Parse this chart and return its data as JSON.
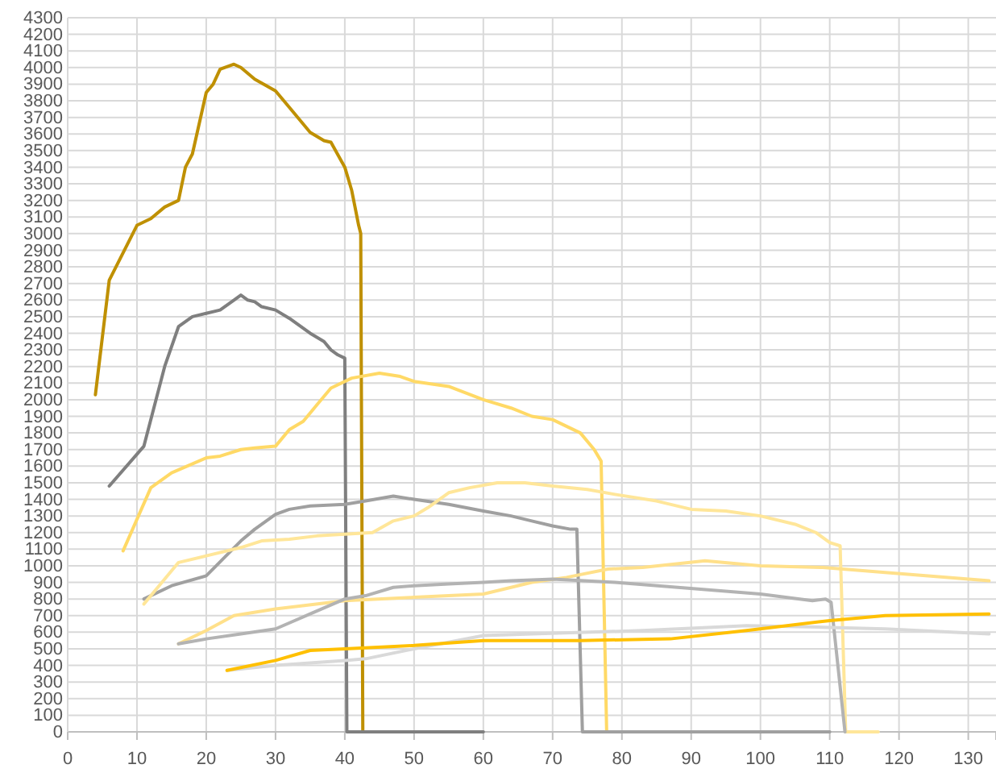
{
  "chart_data": {
    "type": "line",
    "xlim": [
      0,
      134
    ],
    "ylim": [
      0,
      4300
    ],
    "xticks": [
      0,
      10,
      20,
      30,
      40,
      50,
      60,
      70,
      80,
      90,
      100,
      110,
      120,
      130
    ],
    "yticks": [
      0,
      100,
      200,
      300,
      400,
      500,
      600,
      700,
      800,
      900,
      1000,
      1100,
      1200,
      1300,
      1400,
      1500,
      1600,
      1700,
      1800,
      1900,
      2000,
      2100,
      2200,
      2300,
      2400,
      2500,
      2600,
      2700,
      2800,
      2900,
      3000,
      3100,
      3200,
      3300,
      3400,
      3500,
      3600,
      3700,
      3800,
      3900,
      4000,
      4100,
      4200,
      4300
    ],
    "grid": true,
    "marker": "none",
    "line_style": "solid",
    "series": [
      {
        "color": "#bf9000",
        "x": [
          4,
          6,
          10,
          12,
          14,
          16,
          17,
          18,
          20,
          21,
          22,
          24,
          25,
          27,
          30,
          32,
          35,
          37,
          38,
          40,
          41,
          42,
          42.3,
          42.6,
          45
        ],
        "values": [
          2030,
          2720,
          3050,
          3090,
          3160,
          3200,
          3400,
          3480,
          3850,
          3900,
          3990,
          4020,
          4000,
          3930,
          3860,
          3760,
          3610,
          3560,
          3550,
          3400,
          3260,
          3050,
          3000,
          0,
          0
        ]
      },
      {
        "color": "#7f7f7f",
        "x": [
          6,
          11,
          14,
          16,
          18,
          20,
          22,
          24,
          25,
          26,
          27,
          28,
          30,
          32,
          35,
          37,
          38,
          39,
          40,
          40.3,
          60
        ],
        "values": [
          1480,
          1720,
          2200,
          2440,
          2500,
          2520,
          2540,
          2600,
          2630,
          2600,
          2590,
          2560,
          2540,
          2490,
          2400,
          2350,
          2300,
          2270,
          2250,
          0,
          0
        ]
      },
      {
        "color": "#ffd966",
        "x": [
          8,
          12,
          15,
          20,
          22,
          25,
          27,
          30,
          32,
          34,
          36,
          38,
          41,
          45,
          48,
          50,
          55,
          60,
          64,
          67,
          70,
          72,
          74,
          76,
          77,
          77.8,
          82
        ],
        "values": [
          1090,
          1470,
          1560,
          1650,
          1660,
          1700,
          1710,
          1720,
          1820,
          1870,
          1970,
          2070,
          2130,
          2160,
          2140,
          2110,
          2080,
          2000,
          1950,
          1900,
          1880,
          1840,
          1800,
          1700,
          1630,
          0,
          0
        ]
      },
      {
        "color": "#a0a0a0",
        "x": [
          11,
          15,
          20,
          25,
          27,
          30,
          32,
          35,
          40,
          43,
          47,
          50,
          55,
          60,
          64,
          67,
          70,
          72.6,
          73.5,
          74.3,
          110
        ],
        "values": [
          800,
          880,
          940,
          1150,
          1220,
          1310,
          1340,
          1360,
          1370,
          1390,
          1420,
          1400,
          1370,
          1330,
          1300,
          1270,
          1240,
          1220,
          1220,
          0,
          0
        ]
      },
      {
        "color": "#ffe699",
        "x": [
          11,
          13,
          16,
          20,
          25,
          28,
          32,
          36,
          40,
          44,
          47,
          50,
          52,
          55,
          58,
          62,
          66,
          70,
          75,
          79,
          85,
          90,
          95,
          100,
          105,
          108,
          110,
          111.5,
          112.3,
          117
        ],
        "values": [
          770,
          870,
          1020,
          1060,
          1110,
          1150,
          1160,
          1180,
          1190,
          1200,
          1270,
          1300,
          1350,
          1440,
          1470,
          1500,
          1500,
          1480,
          1460,
          1430,
          1390,
          1340,
          1330,
          1300,
          1250,
          1200,
          1140,
          1120,
          0,
          0
        ]
      },
      {
        "color": "#ffe08a",
        "x": [
          16,
          20,
          24,
          30,
          40,
          50,
          60,
          64,
          67,
          72,
          78,
          83,
          92,
          100,
          109,
          118,
          133
        ],
        "values": [
          530,
          610,
          700,
          740,
          790,
          810,
          830,
          870,
          900,
          930,
          980,
          990,
          1030,
          1000,
          990,
          960,
          910
        ]
      },
      {
        "color": "#b3b3b3",
        "x": [
          16,
          20,
          25,
          30,
          35,
          40,
          43,
          47,
          50,
          55,
          60,
          64,
          70,
          79,
          91,
          100,
          107.5,
          109.4,
          110.2,
          112.2
        ],
        "values": [
          530,
          560,
          590,
          620,
          710,
          800,
          820,
          870,
          880,
          890,
          900,
          910,
          920,
          900,
          860,
          830,
          790,
          800,
          780,
          0
        ]
      },
      {
        "color": "#d9d9d9",
        "x": [
          23,
          30,
          40,
          43,
          50,
          60,
          67,
          83,
          98,
          109,
          118,
          133
        ],
        "values": [
          370,
          400,
          430,
          440,
          500,
          580,
          590,
          610,
          640,
          630,
          620,
          590
        ]
      },
      {
        "color": "#ffc000",
        "x": [
          23,
          30,
          35,
          40,
          50,
          60,
          74,
          87,
          98,
          110,
          118,
          133
        ],
        "values": [
          370,
          430,
          490,
          500,
          520,
          550,
          550,
          560,
          610,
          670,
          700,
          710
        ]
      }
    ]
  }
}
